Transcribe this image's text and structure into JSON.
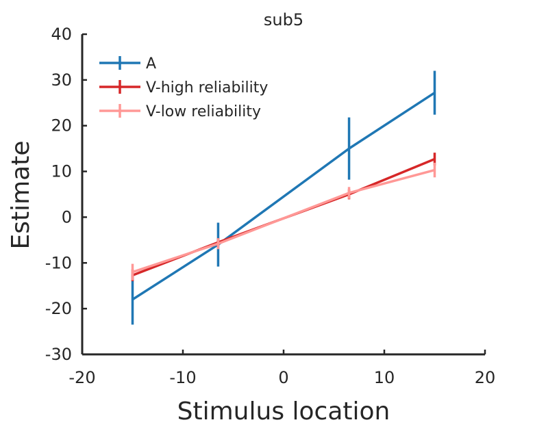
{
  "chart_data": {
    "type": "line",
    "title": "sub5",
    "xlabel": "Stimulus location",
    "ylabel": "Estimate",
    "xlim": [
      -20,
      20
    ],
    "ylim": [
      -30,
      40
    ],
    "xticks": [
      -20,
      -10,
      0,
      10,
      20
    ],
    "yticks": [
      -30,
      -20,
      -10,
      0,
      10,
      20,
      30,
      40
    ],
    "grid": false,
    "legend_position": "top-left",
    "series": [
      {
        "name": "A",
        "color": "#1f77b4",
        "x": [
          -15,
          -6.5,
          6.5,
          15
        ],
        "y": [
          -18,
          -6,
          15,
          27.2
        ],
        "error": [
          5.5,
          4.8,
          6.8,
          4.8
        ]
      },
      {
        "name": "V-high reliability",
        "color": "#d62728",
        "x": [
          -15,
          -6.5,
          6.5,
          15
        ],
        "y": [
          -12.7,
          -5.5,
          5,
          12.7
        ],
        "error": [
          1.3,
          0.9,
          1.1,
          1.4
        ]
      },
      {
        "name": "V-low reliability",
        "color": "#ff9896",
        "x": [
          -15,
          -6.5,
          6.5,
          15
        ],
        "y": [
          -12,
          -5.8,
          5.3,
          10.3
        ],
        "error": [
          1.8,
          1.2,
          1.3,
          1.6
        ]
      }
    ]
  }
}
